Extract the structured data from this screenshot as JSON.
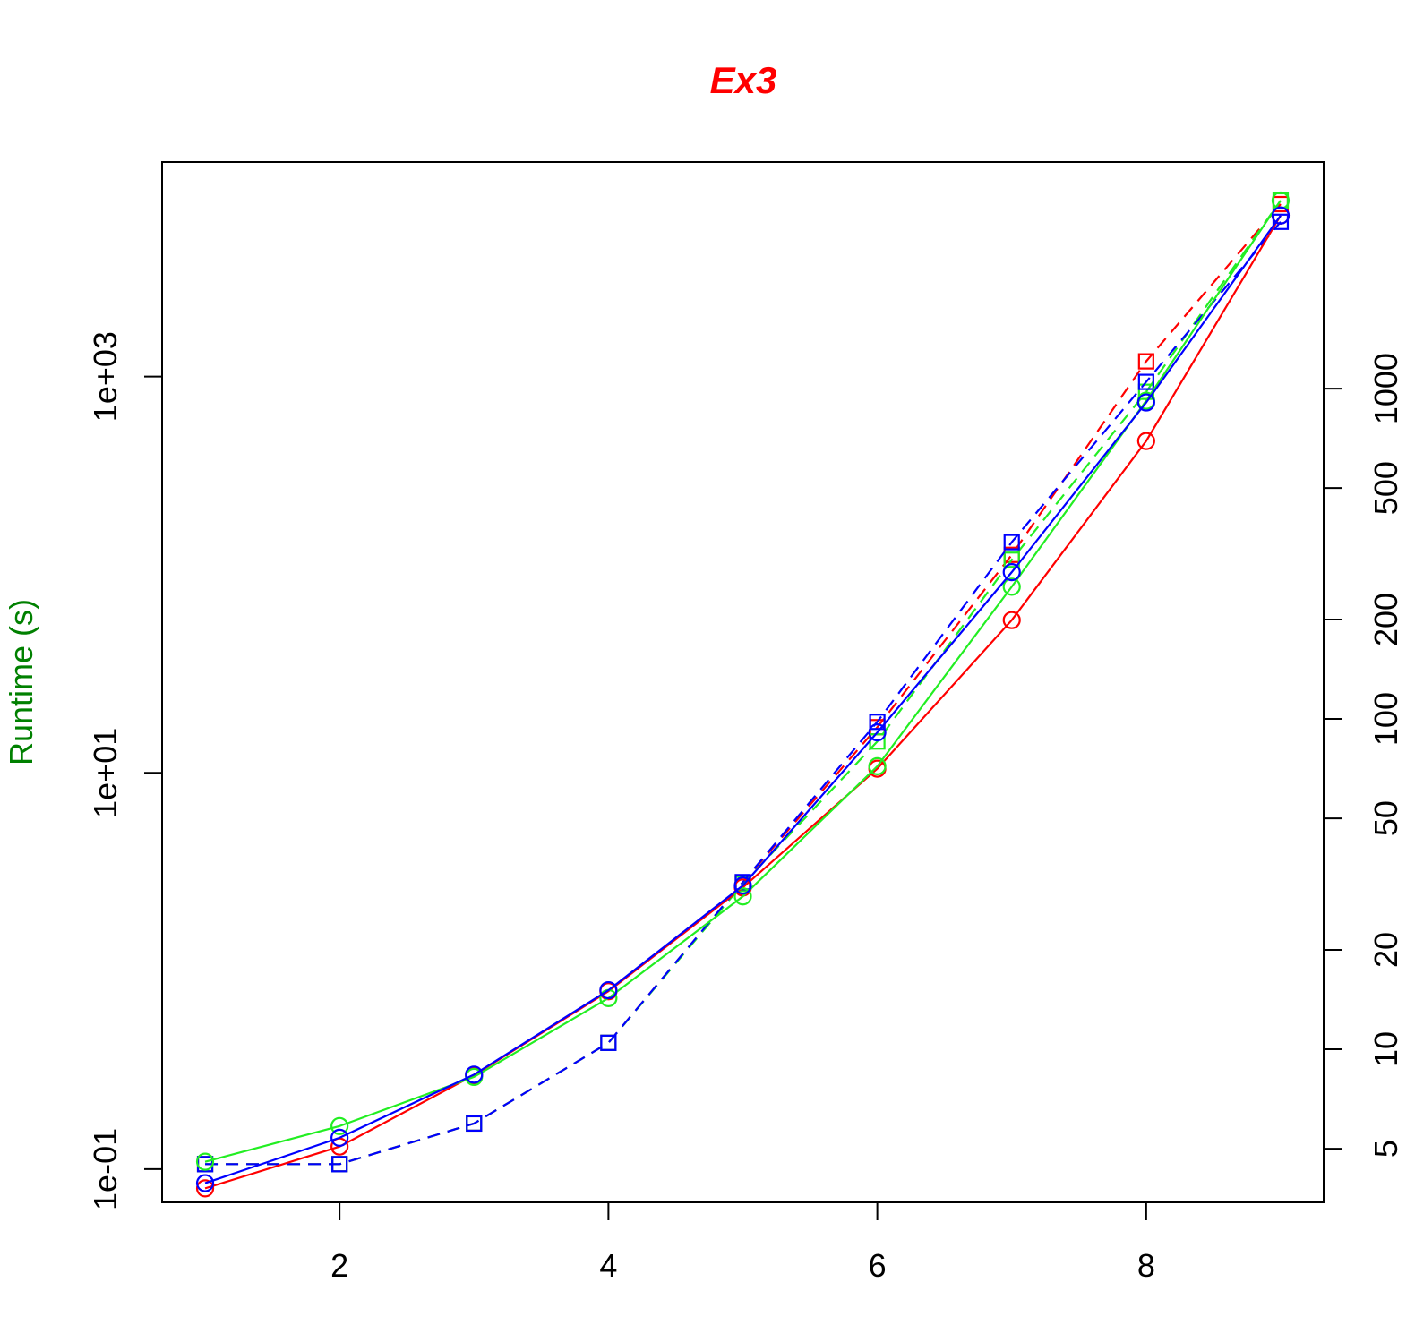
{
  "chart_data": {
    "type": "line",
    "title": "Ex3",
    "y_label": "Runtime (s)",
    "x": [
      1,
      2,
      3,
      4,
      5,
      6,
      7,
      8,
      9
    ],
    "xlim": [
      0.68,
      9.32
    ],
    "xticks": [
      2,
      4,
      6,
      8
    ],
    "ylim": [
      0.068,
      12100
    ],
    "y_log": true,
    "yticks": [
      {
        "value": 0.1,
        "label": "1e-01"
      },
      {
        "value": 10,
        "label": "1e+01"
      },
      {
        "value": 1000,
        "label": "1e+03"
      }
    ],
    "y2lim": [
      3.44,
      4853
    ],
    "y2_log": true,
    "y2ticks": [
      5,
      10,
      20,
      50,
      100,
      200,
      500,
      1000
    ],
    "series": [
      {
        "color": "#ff0000",
        "line_style": "dashed",
        "marker": "square",
        "values": [
          0.106,
          0.106,
          0.17,
          0.434,
          2.8,
          17,
          126,
          1194,
          7420
        ]
      },
      {
        "color": "#22ee22",
        "line_style": "dashed",
        "marker": "square",
        "values": [
          0.106,
          0.106,
          0.17,
          0.434,
          2.75,
          14.4,
          119,
          838,
          7740
        ]
      },
      {
        "color": "#0000ff",
        "line_style": "dashed",
        "marker": "square",
        "values": [
          0.106,
          0.106,
          0.17,
          0.434,
          2.81,
          18.1,
          146,
          940,
          6040
        ]
      },
      {
        "color": "#ff0000",
        "line_style": "solid",
        "marker": "circle",
        "values": [
          0.08,
          0.13,
          0.298,
          0.79,
          2.64,
          10.5,
          59,
          473,
          6500
        ]
      },
      {
        "color": "#22ee22",
        "line_style": "solid",
        "marker": "circle",
        "values": [
          0.109,
          0.165,
          0.292,
          0.73,
          2.38,
          10.8,
          87,
          755,
          7740
        ]
      },
      {
        "color": "#0000ff",
        "line_style": "solid",
        "marker": "circle",
        "values": [
          0.085,
          0.144,
          0.3,
          0.8,
          2.7,
          16,
          103,
          740,
          6500
        ]
      }
    ]
  }
}
